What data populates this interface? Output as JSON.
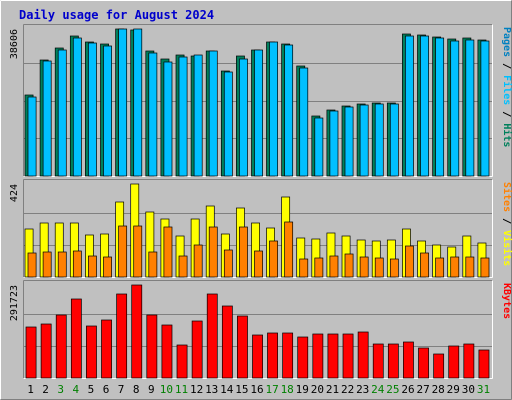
{
  "chart_data": {
    "type": "bar",
    "title": "Daily usage for August 2024",
    "categories": [
      "1",
      "2",
      "3",
      "4",
      "5",
      "6",
      "7",
      "8",
      "9",
      "10",
      "11",
      "12",
      "13",
      "14",
      "15",
      "16",
      "17",
      "18",
      "19",
      "20",
      "21",
      "22",
      "23",
      "24",
      "25",
      "26",
      "27",
      "28",
      "29",
      "30",
      "31"
    ],
    "weekend_days": [
      3,
      4,
      10,
      11,
      17,
      18,
      24,
      25,
      31
    ],
    "grid": true,
    "colors": {
      "background": "#c0c0c0",
      "title": "#0000cc",
      "weekday_label": "#000000",
      "weekend_label": "#008000",
      "hits": "#00805c",
      "files": "#00c0ff",
      "pages": "#0080c0",
      "visits": "#ffff00",
      "sites": "#ff8000",
      "kbytes": "#ff0000"
    },
    "panels": [
      {
        "name": "traffic",
        "max_label": "38606",
        "ylim": [
          0,
          38606
        ],
        "legend": [
          {
            "text": "Pages",
            "color": "#0080c0"
          },
          {
            "text": " / ",
            "color": "#000000"
          },
          {
            "text": "Files",
            "color": "#00c0ff"
          },
          {
            "text": " / ",
            "color": "#000000"
          },
          {
            "text": "Hits",
            "color": "#00805c"
          }
        ],
        "series": [
          {
            "name": "Hits",
            "color": "#00805c",
            "values": [
              21200,
              30500,
              33700,
              36700,
              35200,
              34700,
              38500,
              38300,
              32900,
              30600,
              31700,
              31400,
              32800,
              27600,
              31400,
              33200,
              35100,
              34700,
              28800,
              15800,
              17400,
              18500,
              19000,
              19300,
              19300,
              37200,
              37000,
              36600,
              35900,
              36300,
              35800
            ]
          },
          {
            "name": "Files",
            "color": "#00c0ff",
            "values": [
              20700,
              30100,
              33200,
              36200,
              34800,
              34100,
              38600,
              38600,
              32400,
              30000,
              31300,
              31800,
              32800,
              27200,
              30800,
              33200,
              35300,
              34300,
              28400,
              15200,
              17100,
              18200,
              18700,
              18900,
              18900,
              36700,
              36800,
              36300,
              35500,
              35800,
              35400
            ]
          }
        ]
      },
      {
        "name": "visitors",
        "max_label": "424",
        "ylim": [
          0,
          424
        ],
        "legend": [
          {
            "text": "Sites",
            "color": "#ff8000"
          },
          {
            "text": " / ",
            "color": "#000000"
          },
          {
            "text": "Visits",
            "color": "#ffff00"
          }
        ],
        "series": [
          {
            "name": "Visits",
            "color": "#ffff00",
            "values": [
              219,
              245,
              247,
              245,
              193,
              197,
              340,
              424,
              296,
              265,
              185,
              266,
              325,
              197,
              315,
              245,
              223,
              364,
              180,
              173,
              200,
              186,
              170,
              165,
              168,
              219,
              166,
              148,
              139,
              188,
              157
            ]
          },
          {
            "name": "Sites",
            "color": "#ff8000",
            "values": [
              110,
              115,
              115,
              119,
              97,
              89,
              232,
              232,
              116,
              226,
              96,
              145,
              229,
              124,
              229,
              118,
              164,
              251,
              82,
              88,
              98,
              105,
              90,
              85,
              82,
              143,
              111,
              88,
              92,
              90,
              88
            ]
          }
        ]
      },
      {
        "name": "kbytes",
        "max_label": "291723",
        "ylim": [
          0,
          291723
        ],
        "legend": [
          {
            "text": "KBytes",
            "color": "#ff0000"
          }
        ],
        "series": [
          {
            "name": "KBytes",
            "color": "#ff0000",
            "values": [
              160000,
              168000,
              197000,
              248000,
              164000,
              181000,
              265000,
              291700,
              199000,
              167000,
              105000,
              180000,
              265000,
              227000,
              196000,
              135000,
              142000,
              142000,
              128000,
              138000,
              137000,
              137000,
              143000,
              108000,
              106000,
              112000,
              93000,
              75000,
              101000,
              108000,
              87000
            ]
          }
        ]
      }
    ]
  }
}
